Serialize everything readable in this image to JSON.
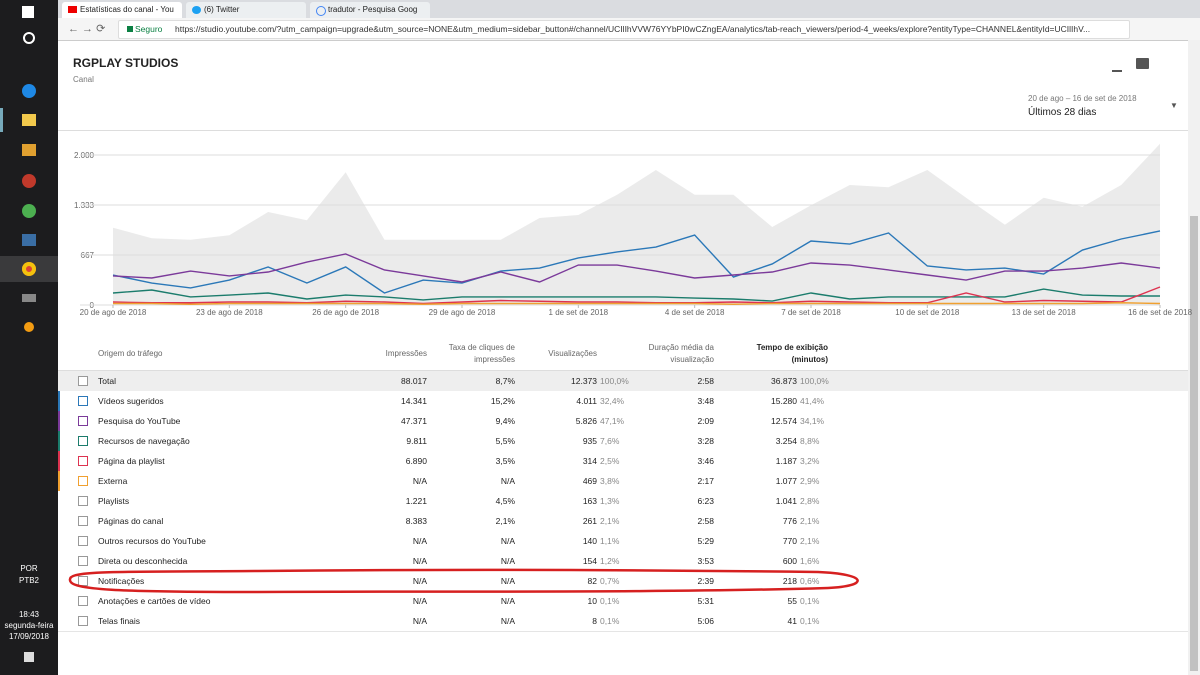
{
  "browser": {
    "tabs": [
      "Estatísticas do canal - You",
      "(6) Twitter",
      "tradutor - Pesquisa Goog"
    ],
    "secure": "Seguro",
    "url": "https://studio.youtube.com/?utm_campaign=upgrade&utm_source=NONE&utm_medium=sidebar_button#/channel/UCIlIhVVW76YYbPI0wCZngEA/analytics/tab-reach_viewers/period-4_weeks/explore?entityType=CHANNEL&entityId=UCIlIhV..."
  },
  "taskbar": {
    "lang": "POR",
    "layout": "PTB2",
    "time": "18:43",
    "day": "segunda-feira",
    "date": "17/09/2018"
  },
  "header": {
    "title": "RGPLAY STUDIOS",
    "subtitle": "Canal",
    "date_range": "20 de ago – 16 de set de 2018",
    "period": "Últimos 28 dias"
  },
  "chart_data": {
    "type": "line",
    "categories": [
      "20 de ago de 2018",
      null,
      null,
      "23 de ago de 2018",
      null,
      null,
      "26 de ago de 2018",
      null,
      null,
      "29 de ago de 2018",
      null,
      null,
      "1 de set de 2018",
      null,
      null,
      "4 de set de 2018",
      null,
      null,
      "7 de set de 2018",
      null,
      null,
      "10 de set de 2018",
      null,
      null,
      "13 de set de 2018",
      null,
      null,
      "16 de set de 2018"
    ],
    "ylim": [
      0,
      2200
    ],
    "yticks": [
      0,
      {
        "value": 667,
        "label": "667"
      },
      {
        "value": 1333,
        "label": "1.333"
      },
      {
        "value": 2000,
        "label": "2.000"
      }
    ],
    "grid": true,
    "series": [
      {
        "color": "#ebebeb",
        "area": true,
        "values": [
          1030,
          890,
          870,
          930,
          1240,
          1130,
          1770,
          870,
          870,
          870,
          870,
          1160,
          1200,
          1470,
          1800,
          1470,
          1470,
          1040,
          1330,
          1600,
          1570,
          1800,
          1430,
          1070,
          1430,
          1310,
          1600,
          2150
        ]
      },
      {
        "color": "#2b78b8",
        "values": [
          400,
          293,
          227,
          333,
          507,
          293,
          507,
          160,
          333,
          293,
          453,
          493,
          627,
          707,
          773,
          933,
          373,
          547,
          853,
          813,
          960,
          520,
          467,
          493,
          413,
          733,
          880,
          987
        ]
      },
      {
        "color": "#7b3a9a",
        "values": [
          387,
          360,
          453,
          387,
          440,
          573,
          680,
          467,
          387,
          307,
          440,
          307,
          533,
          533,
          453,
          360,
          400,
          440,
          560,
          533,
          467,
          400,
          333,
          453,
          453,
          493,
          560,
          493
        ]
      },
      {
        "color": "#1b7c6c",
        "values": [
          160,
          200,
          107,
          133,
          160,
          80,
          133,
          107,
          67,
          107,
          107,
          107,
          107,
          107,
          107,
          93,
          80,
          53,
          160,
          80,
          107,
          107,
          107,
          107,
          213,
          133,
          120,
          120
        ]
      },
      {
        "color": "#dd3350",
        "values": [
          40,
          30,
          30,
          40,
          40,
          30,
          50,
          40,
          20,
          40,
          60,
          50,
          40,
          40,
          30,
          30,
          40,
          30,
          50,
          40,
          30,
          30,
          160,
          40,
          60,
          50,
          40,
          240
        ]
      },
      {
        "color": "#f0a030",
        "values": [
          20,
          20,
          10,
          20,
          20,
          20,
          20,
          20,
          10,
          20,
          20,
          20,
          20,
          20,
          20,
          20,
          10,
          20,
          20,
          20,
          20,
          20,
          20,
          20,
          20,
          20,
          30,
          20
        ]
      }
    ]
  },
  "table": {
    "headers": [
      "Origem do tráfego",
      "Impressões",
      "Taxa de cliques de impressões",
      "Visualizações",
      "Duração média da visualização",
      "Tempo de exibição (minutos)"
    ],
    "rows": [
      [
        "Total",
        "88.017",
        "8,7%",
        "12.373",
        "100,0%",
        "2:58",
        "36.873",
        "100,0%"
      ],
      [
        "Vídeos sugeridos",
        "14.341",
        "15,2%",
        "4.011",
        "32,4%",
        "3:48",
        "15.280",
        "41,4%"
      ],
      [
        "Pesquisa do YouTube",
        "47.371",
        "9,4%",
        "5.826",
        "47,1%",
        "2:09",
        "12.574",
        "34,1%"
      ],
      [
        "Recursos de navegação",
        "9.811",
        "5,5%",
        "935",
        "7,6%",
        "3:28",
        "3.254",
        "8,8%"
      ],
      [
        "Página da playlist",
        "6.890",
        "3,5%",
        "314",
        "2,5%",
        "3:46",
        "1.187",
        "3,2%"
      ],
      [
        "Externa",
        "N/A",
        "N/A",
        "469",
        "3,8%",
        "2:17",
        "1.077",
        "2,9%"
      ],
      [
        "Playlists",
        "1.221",
        "4,5%",
        "163",
        "1,3%",
        "6:23",
        "1.041",
        "2,8%"
      ],
      [
        "Páginas do canal",
        "8.383",
        "2,1%",
        "261",
        "2,1%",
        "2:58",
        "776",
        "2,1%"
      ],
      [
        "Outros recursos do YouTube",
        "N/A",
        "N/A",
        "140",
        "1,1%",
        "5:29",
        "770",
        "2,1%"
      ],
      [
        "Direta ou desconhecida",
        "N/A",
        "N/A",
        "154",
        "1,2%",
        "3:53",
        "600",
        "1,6%"
      ],
      [
        "Notificações",
        "N/A",
        "N/A",
        "82",
        "0,7%",
        "2:39",
        "218",
        "0,6%"
      ],
      [
        "Anotações e cartões de vídeo",
        "N/A",
        "N/A",
        "10",
        "0,1%",
        "5:31",
        "55",
        "0,1%"
      ],
      [
        "Telas finais",
        "N/A",
        "N/A",
        "8",
        "0,1%",
        "5:06",
        "41",
        "0,1%"
      ]
    ]
  }
}
